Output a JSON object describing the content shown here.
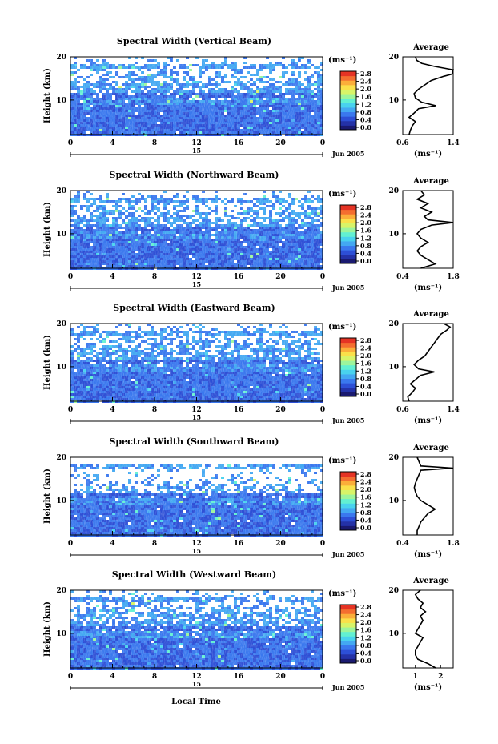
{
  "figure": {
    "xlabel": "Local Time",
    "date_label": "Jun 2005",
    "day_label": "15",
    "ylabel": "Height (km)",
    "colorbar_unit": "(ms⁻¹)",
    "avg_title": "Average",
    "avg_xlabel": "(ms⁻¹)"
  },
  "colormap": [
    "#1a1a70",
    "#2432a8",
    "#2d4fd6",
    "#3a78ee",
    "#43a8f2",
    "#49d2ee",
    "#62f0d2",
    "#9df59c",
    "#d8f468",
    "#fae04a",
    "#fbae3a",
    "#f46e30",
    "#e53324"
  ],
  "chart_data": [
    {
      "type": "heatmap",
      "title": "Spectral Width (Vertical Beam)",
      "x": [
        0,
        24
      ],
      "xticks": [
        "0",
        "4",
        "8",
        "12",
        "16",
        "20",
        "0"
      ],
      "ylim": [
        2,
        20
      ],
      "yticks": [
        "20",
        "10"
      ],
      "colorbar": {
        "ticks": [
          "2.8",
          "2.4",
          "2.0",
          "1.6",
          "1.2",
          "0.8",
          "0.4",
          "0.0"
        ],
        "range": [
          0.0,
          2.8
        ]
      },
      "average_profile": {
        "xlim": [
          0.6,
          1.4
        ],
        "xticks": [
          "0.6",
          "1.4"
        ],
        "points": [
          [
            0.7,
            2
          ],
          [
            0.72,
            3
          ],
          [
            0.75,
            4
          ],
          [
            0.8,
            5
          ],
          [
            0.7,
            6
          ],
          [
            0.78,
            7
          ],
          [
            0.85,
            8
          ],
          [
            1.12,
            8.7
          ],
          [
            0.9,
            9.5
          ],
          [
            0.8,
            10.5
          ],
          [
            0.78,
            11.5
          ],
          [
            0.85,
            12.5
          ],
          [
            0.95,
            13.5
          ],
          [
            1.05,
            14.5
          ],
          [
            1.25,
            15.5
          ],
          [
            1.38,
            16
          ],
          [
            1.4,
            17
          ],
          [
            1.1,
            17.8
          ],
          [
            0.9,
            18.5
          ],
          [
            0.82,
            19.2
          ],
          [
            0.8,
            20
          ]
        ]
      }
    },
    {
      "type": "heatmap",
      "title": "Spectral Width (Northward Beam)",
      "x": [
        0,
        24
      ],
      "xticks": [
        "0",
        "4",
        "8",
        "12",
        "16",
        "20",
        "0"
      ],
      "ylim": [
        2,
        20
      ],
      "yticks": [
        "20",
        "10"
      ],
      "colorbar": {
        "ticks": [
          "2.8",
          "2.4",
          "2.0",
          "1.6",
          "1.2",
          "0.8",
          "0.4",
          "0.0"
        ],
        "range": [
          0.0,
          2.8
        ]
      },
      "average_profile": {
        "xlim": [
          0.4,
          1.8
        ],
        "xticks": [
          "0.4",
          "1.8"
        ],
        "points": [
          [
            0.9,
            2
          ],
          [
            1.3,
            3
          ],
          [
            1.1,
            4
          ],
          [
            0.9,
            5
          ],
          [
            0.8,
            6
          ],
          [
            0.9,
            7
          ],
          [
            1.1,
            8
          ],
          [
            0.9,
            9
          ],
          [
            0.8,
            10
          ],
          [
            0.9,
            11
          ],
          [
            1.2,
            12
          ],
          [
            1.8,
            12.6
          ],
          [
            1.1,
            13.2
          ],
          [
            1.0,
            14
          ],
          [
            1.2,
            15
          ],
          [
            0.9,
            16
          ],
          [
            1.1,
            17
          ],
          [
            0.8,
            18
          ],
          [
            1.0,
            19
          ],
          [
            0.9,
            20
          ]
        ]
      }
    },
    {
      "type": "heatmap",
      "title": "Spectral Width (Eastward Beam)",
      "x": [
        0,
        24
      ],
      "xticks": [
        "0",
        "4",
        "8",
        "12",
        "16",
        "20",
        "0"
      ],
      "ylim": [
        2,
        20
      ],
      "yticks": [
        "20",
        "10"
      ],
      "colorbar": {
        "ticks": [
          "2.8",
          "2.4",
          "2.0",
          "1.6",
          "1.2",
          "0.8",
          "0.4",
          "0.0"
        ],
        "range": [
          0.0,
          2.8
        ]
      },
      "average_profile": {
        "xlim": [
          0.6,
          1.4
        ],
        "xticks": [
          "0.6",
          "1.4"
        ],
        "points": [
          [
            0.7,
            2
          ],
          [
            0.68,
            3
          ],
          [
            0.75,
            4
          ],
          [
            0.8,
            5
          ],
          [
            0.72,
            6
          ],
          [
            0.8,
            7
          ],
          [
            0.88,
            8
          ],
          [
            1.1,
            8.8
          ],
          [
            0.85,
            9.5
          ],
          [
            0.78,
            10.5
          ],
          [
            0.85,
            11.5
          ],
          [
            0.95,
            12.5
          ],
          [
            1.0,
            13.5
          ],
          [
            1.05,
            14.5
          ],
          [
            1.1,
            15.5
          ],
          [
            1.15,
            16.5
          ],
          [
            1.2,
            17.5
          ],
          [
            1.3,
            18.5
          ],
          [
            1.35,
            19.2
          ],
          [
            1.25,
            20
          ]
        ]
      }
    },
    {
      "type": "heatmap",
      "title": "Spectral Width (Southward Beam)",
      "x": [
        0,
        24
      ],
      "xticks": [
        "0",
        "4",
        "8",
        "12",
        "16",
        "20",
        "0"
      ],
      "ylim": [
        2,
        20
      ],
      "yticks": [
        "20",
        "10"
      ],
      "colorbar": {
        "ticks": [
          "2.8",
          "2.4",
          "2.0",
          "1.6",
          "1.2",
          "0.8",
          "0.4",
          "0.0"
        ],
        "range": [
          0.0,
          2.8
        ]
      },
      "average_profile": {
        "xlim": [
          0.4,
          1.8
        ],
        "xticks": [
          "0.4",
          "1.8"
        ],
        "points": [
          [
            0.8,
            2
          ],
          [
            0.8,
            3
          ],
          [
            0.85,
            4
          ],
          [
            0.9,
            5
          ],
          [
            1.0,
            6
          ],
          [
            1.1,
            7
          ],
          [
            1.3,
            8
          ],
          [
            1.1,
            9
          ],
          [
            0.9,
            10
          ],
          [
            0.8,
            11
          ],
          [
            0.75,
            12
          ],
          [
            0.72,
            13
          ],
          [
            0.75,
            14
          ],
          [
            0.8,
            15
          ],
          [
            0.85,
            16
          ],
          [
            0.9,
            17
          ],
          [
            1.8,
            17.5
          ],
          [
            0.9,
            18
          ],
          [
            0.85,
            19
          ],
          [
            0.8,
            20
          ]
        ]
      }
    },
    {
      "type": "heatmap",
      "title": "Spectral Width (Westward Beam)",
      "x": [
        0,
        24
      ],
      "xticks": [
        "0",
        "4",
        "8",
        "12",
        "16",
        "20",
        "0"
      ],
      "ylim": [
        2,
        20
      ],
      "yticks": [
        "20",
        "10"
      ],
      "colorbar": {
        "ticks": [
          "2.8",
          "2.4",
          "2.0",
          "1.6",
          "1.2",
          "0.8",
          "0.4",
          "0.0"
        ],
        "range": [
          0.0,
          2.8
        ]
      },
      "average_profile": {
        "xlim": [
          0.5,
          2.5
        ],
        "xticks": [
          "1",
          "2"
        ],
        "points": [
          [
            1.8,
            2
          ],
          [
            1.5,
            3
          ],
          [
            1.1,
            4
          ],
          [
            1.0,
            5
          ],
          [
            1.0,
            6
          ],
          [
            1.1,
            7
          ],
          [
            1.2,
            8
          ],
          [
            1.3,
            9
          ],
          [
            1.0,
            10
          ],
          [
            1.1,
            11
          ],
          [
            1.2,
            12
          ],
          [
            1.3,
            13
          ],
          [
            1.2,
            14
          ],
          [
            1.4,
            15
          ],
          [
            1.2,
            16
          ],
          [
            1.3,
            17
          ],
          [
            1.1,
            18
          ],
          [
            1.0,
            19
          ],
          [
            1.2,
            20
          ]
        ]
      }
    }
  ]
}
